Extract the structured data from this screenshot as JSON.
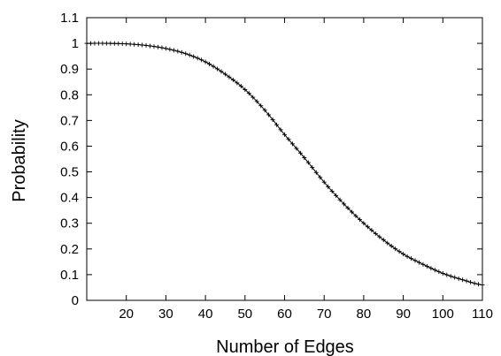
{
  "chart_data": {
    "type": "scatter",
    "xlabel": "Number of Edges",
    "ylabel": "Probability",
    "xlim": [
      10,
      110
    ],
    "ylim": [
      0,
      1.1
    ],
    "xticks": [
      "20",
      "30",
      "40",
      "50",
      "60",
      "70",
      "80",
      "90",
      "100",
      "110"
    ],
    "yticks": [
      "0",
      "0.1",
      "0.2",
      "0.3",
      "0.4",
      "0.5",
      "0.6",
      "0.7",
      "0.8",
      "0.9",
      "1",
      "1.1"
    ],
    "grid": false,
    "legend": "none",
    "marker": "plus",
    "color": "#000000",
    "series": [
      {
        "x": [
          10,
          15,
          20,
          25,
          30,
          35,
          40,
          45,
          50,
          55,
          60,
          65,
          70,
          75,
          80,
          85,
          90,
          95,
          100,
          105,
          110
        ],
        "values": [
          1.0,
          1.0,
          0.998,
          0.992,
          0.98,
          0.96,
          0.928,
          0.88,
          0.82,
          0.74,
          0.645,
          0.555,
          0.46,
          0.375,
          0.3,
          0.235,
          0.18,
          0.14,
          0.105,
          0.08,
          0.06
        ]
      }
    ]
  }
}
